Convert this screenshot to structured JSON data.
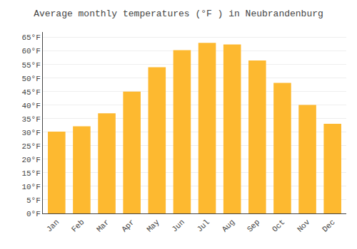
{
  "chart_data": {
    "type": "bar",
    "title": "Average monthly temperatures (°F ) in Neubrandenburg",
    "categories": [
      "Jan",
      "Feb",
      "Mar",
      "Apr",
      "May",
      "Jun",
      "Jul",
      "Aug",
      "Sep",
      "Oct",
      "Nov",
      "Dec"
    ],
    "values": [
      30.2,
      32.2,
      37.0,
      45.0,
      54.0,
      60.3,
      63.0,
      62.4,
      56.5,
      48.2,
      40.1,
      33.1
    ],
    "color": "#FDB930",
    "ylim": [
      0,
      67
    ],
    "yticks": [
      {
        "value": 0,
        "label": "0°F"
      },
      {
        "value": 5,
        "label": "5°F"
      },
      {
        "value": 10,
        "label": "10°F"
      },
      {
        "value": 15,
        "label": "15°F"
      },
      {
        "value": 20,
        "label": "20°F"
      },
      {
        "value": 25,
        "label": "25°F"
      },
      {
        "value": 30,
        "label": "30°F"
      },
      {
        "value": 35,
        "label": "35°F"
      },
      {
        "value": 40,
        "label": "40°F"
      },
      {
        "value": 45,
        "label": "45°F"
      },
      {
        "value": 50,
        "label": "50°F"
      },
      {
        "value": 55,
        "label": "55°F"
      },
      {
        "value": 60,
        "label": "60°F"
      },
      {
        "value": 65,
        "label": "65°F"
      }
    ],
    "grid": true
  }
}
